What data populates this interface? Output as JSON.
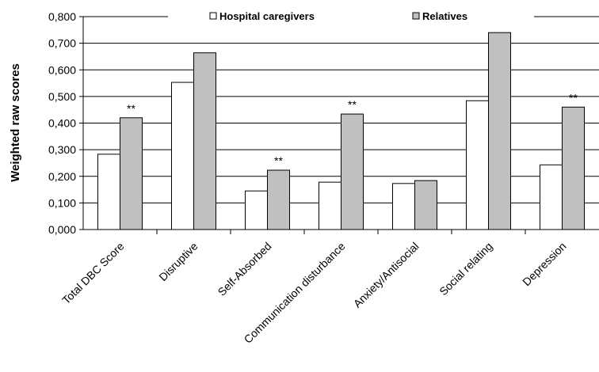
{
  "chart_data": {
    "type": "bar",
    "ylabel": "Weighted raw scores",
    "ylim": [
      0,
      0.8
    ],
    "y_ticks": [
      "0,000",
      "0,100",
      "0,200",
      "0,300",
      "0,400",
      "0,500",
      "0,600",
      "0,700",
      "0,800"
    ],
    "y_tick_values": [
      0,
      0.1,
      0.2,
      0.3,
      0.4,
      0.5,
      0.6,
      0.7,
      0.8
    ],
    "grid": true,
    "legend_position": "top",
    "categories": [
      "Total DBC Score",
      "Disruptive",
      "Self-Absorbed",
      "Communication disturbance",
      "Anxiety/Antisocial",
      "Social relating",
      "Depression"
    ],
    "series": [
      {
        "name": "Hospital caregivers",
        "color": "#ffffff",
        "values": [
          0.283,
          0.553,
          0.145,
          0.178,
          0.173,
          0.484,
          0.243
        ]
      },
      {
        "name": "Relatives",
        "color": "#c0c0c0",
        "values": [
          0.42,
          0.664,
          0.223,
          0.434,
          0.184,
          0.74,
          0.46
        ]
      }
    ],
    "annotations": [
      "**",
      "",
      "**",
      "**",
      "",
      "**",
      "**"
    ]
  }
}
